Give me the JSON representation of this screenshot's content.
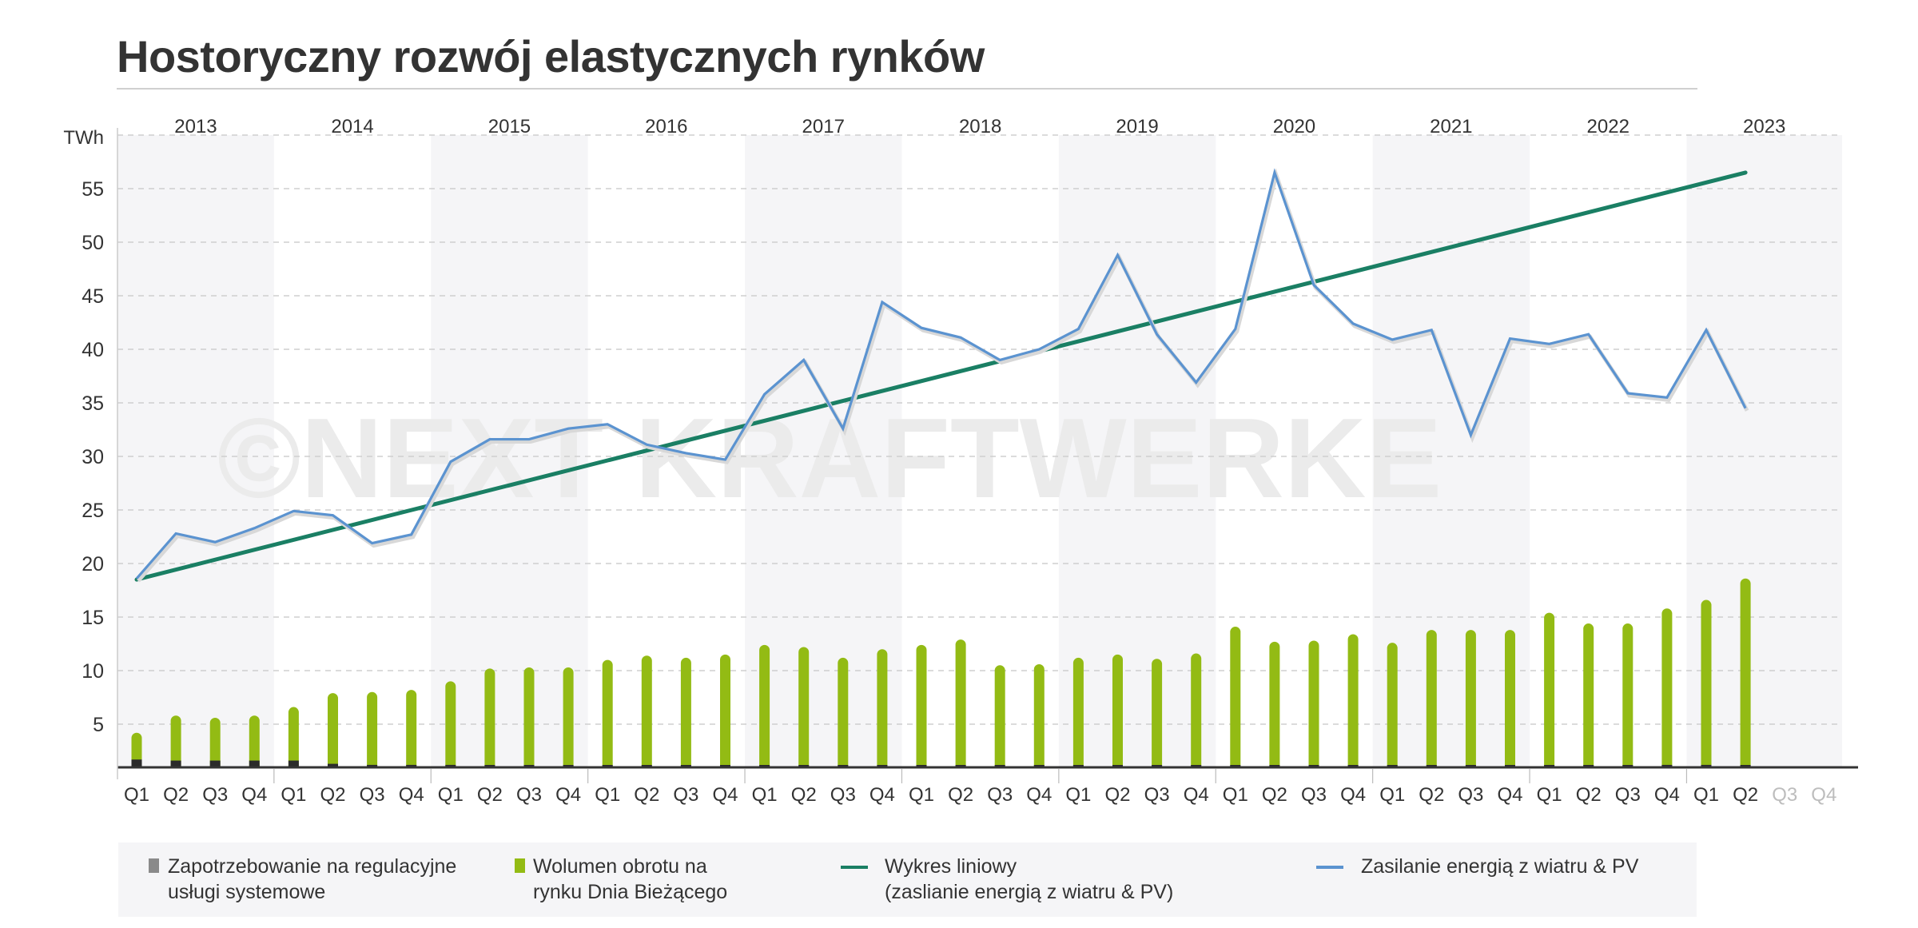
{
  "title": "Hostoryczny rozwój elastycznych rynków",
  "watermark": "©NEXT KRAFTWERKE",
  "legend": {
    "regulation": {
      "line1": "Zapotrzebowanie na regulacyjne",
      "line2": "usługi systemowe",
      "color": "#8a8a8a"
    },
    "intraday": {
      "line1": "Wolumen obrotu na",
      "line2": "rynku Dnia Bieżącego",
      "color": "#93bb14"
    },
    "trend": {
      "line1": "Wykres liniowy",
      "line2": "(zaslianie energią z wiatru & PV)",
      "color": "#1a7f64"
    },
    "windpv": {
      "line1": "Zasilanie energią z wiatru & PV",
      "color": "#5b93d0"
    }
  },
  "chart_data": {
    "type": "bar+line",
    "ylabel": "TWh",
    "ylim": [
      0,
      60
    ],
    "yticks": [
      5,
      10,
      15,
      20,
      25,
      30,
      35,
      40,
      45,
      50,
      55
    ],
    "grid": true,
    "legend_position": "bottom",
    "years": [
      "2013",
      "2014",
      "2015",
      "2016",
      "2017",
      "2018",
      "2019",
      "2020",
      "2021",
      "2022",
      "2023"
    ],
    "quarters": [
      "Q1",
      "Q2",
      "Q3",
      "Q4"
    ],
    "future_quarters": [
      "Q3 2023",
      "Q4 2023"
    ],
    "series": [
      {
        "name": "Zapotrzebowanie na regulacyjne usługi systemowe",
        "type": "bar",
        "color": "#2b2b2b",
        "values": [
          1.7,
          1.6,
          1.6,
          1.6,
          1.6,
          1.3,
          1.2,
          1.2,
          1.2,
          1.1,
          1.1,
          1.0,
          1.0,
          1.0,
          1.0,
          1.0,
          1.1,
          1.1,
          1.1,
          1.0,
          1.0,
          1.0,
          1.0,
          1.1,
          1.1,
          1.1,
          1.0,
          1.0,
          1.0,
          1.1,
          1.1,
          1.1,
          1.1,
          1.1,
          1.0,
          1.0,
          1.0,
          1.0,
          1.1,
          1.2,
          1.2,
          1.1
        ]
      },
      {
        "name": "Wolumen obrotu na rynku Dnia Bieżącego",
        "type": "bar",
        "color": "#93bb14",
        "values": [
          4.2,
          5.8,
          5.6,
          5.8,
          6.6,
          7.9,
          8.0,
          8.2,
          9.0,
          10.2,
          10.3,
          10.3,
          11.0,
          11.4,
          11.2,
          11.5,
          12.4,
          12.2,
          11.2,
          12.0,
          12.4,
          12.9,
          10.5,
          10.6,
          11.2,
          11.5,
          11.1,
          11.6,
          14.1,
          12.7,
          12.8,
          13.4,
          12.6,
          13.8,
          13.8,
          13.8,
          15.4,
          14.4,
          14.4,
          15.8,
          16.6,
          18.6
        ]
      },
      {
        "name": "Wykres liniowy (zaslianie energią z wiatru & PV)",
        "type": "line",
        "color": "#1a7f64",
        "values_endpoints": {
          "start": 18.5,
          "end": 56.5
        }
      },
      {
        "name": "Zasilanie energią z wiatru & PV",
        "type": "line",
        "color": "#5b93d0",
        "values": [
          18.6,
          22.8,
          22.0,
          23.3,
          24.9,
          24.5,
          21.9,
          22.7,
          29.5,
          31.6,
          31.6,
          32.6,
          33.0,
          31.1,
          30.3,
          29.7,
          35.8,
          39.0,
          32.6,
          44.4,
          42.0,
          41.1,
          39.0,
          40.0,
          41.9,
          48.8,
          41.4,
          36.9,
          41.9,
          56.5,
          46.0,
          42.4,
          40.9,
          41.8,
          32.0,
          41.0,
          40.5,
          41.4,
          35.9,
          35.5,
          41.8,
          34.5
        ]
      }
    ]
  }
}
